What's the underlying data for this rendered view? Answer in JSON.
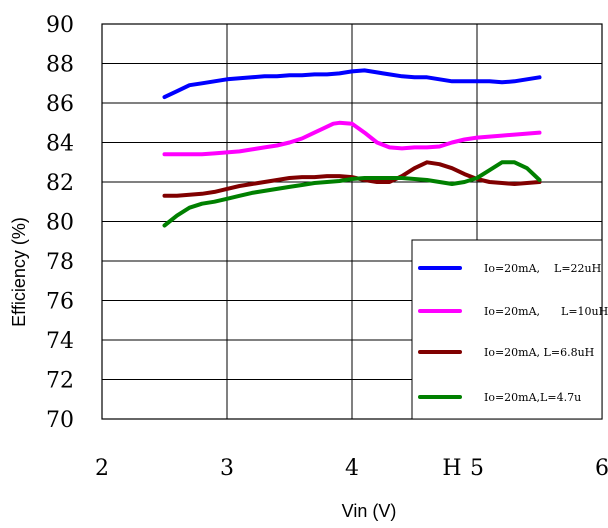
{
  "chart_data": {
    "type": "line",
    "title": "",
    "xlabel": "Vin (V)",
    "ylabel": "Efficiency (%)",
    "xlim": [
      2,
      6
    ],
    "ylim": [
      70,
      90
    ],
    "xticks": [
      "2",
      "3",
      "4",
      "5",
      "6"
    ],
    "yticks": [
      "70",
      "72",
      "74",
      "76",
      "78",
      "80",
      "82",
      "84",
      "86",
      "88",
      "90"
    ],
    "grid": "major gridlines on",
    "legend_position": "bottom-right",
    "stray_label": "H",
    "series": [
      {
        "name": "Io=20mA,    L=22uH",
        "color": "#0000ff",
        "x": [
          2.5,
          2.6,
          2.7,
          2.8,
          2.9,
          3.0,
          3.1,
          3.2,
          3.3,
          3.4,
          3.5,
          3.6,
          3.7,
          3.8,
          3.9,
          4.0,
          4.1,
          4.2,
          4.3,
          4.4,
          4.5,
          4.6,
          4.7,
          4.8,
          4.9,
          5.0,
          5.1,
          5.2,
          5.3,
          5.4,
          5.5
        ],
        "y": [
          86.3,
          86.6,
          86.9,
          87.0,
          87.1,
          87.2,
          87.25,
          87.3,
          87.35,
          87.35,
          87.4,
          87.4,
          87.45,
          87.45,
          87.5,
          87.6,
          87.65,
          87.55,
          87.45,
          87.35,
          87.3,
          87.3,
          87.2,
          87.1,
          87.1,
          87.1,
          87.1,
          87.05,
          87.1,
          87.2,
          87.3
        ]
      },
      {
        "name": "Io=20mA,      L=10uH",
        "color": "#ff00ff",
        "x": [
          2.5,
          2.6,
          2.7,
          2.8,
          2.9,
          3.0,
          3.1,
          3.2,
          3.3,
          3.4,
          3.5,
          3.6,
          3.7,
          3.8,
          3.85,
          3.9,
          4.0,
          4.1,
          4.2,
          4.3,
          4.4,
          4.5,
          4.6,
          4.7,
          4.8,
          4.9,
          5.0,
          5.1,
          5.2,
          5.3,
          5.4,
          5.5
        ],
        "y": [
          83.4,
          83.4,
          83.4,
          83.4,
          83.45,
          83.5,
          83.55,
          83.65,
          83.75,
          83.85,
          84.0,
          84.2,
          84.5,
          84.8,
          84.95,
          85.0,
          84.95,
          84.5,
          84.0,
          83.75,
          83.7,
          83.75,
          83.75,
          83.8,
          84.0,
          84.15,
          84.25,
          84.3,
          84.35,
          84.4,
          84.45,
          84.5
        ]
      },
      {
        "name": "Io=20mA, L=6.8uH",
        "color": "#800000",
        "x": [
          2.5,
          2.6,
          2.7,
          2.8,
          2.9,
          3.0,
          3.1,
          3.2,
          3.3,
          3.4,
          3.5,
          3.6,
          3.7,
          3.8,
          3.9,
          4.0,
          4.1,
          4.2,
          4.3,
          4.4,
          4.5,
          4.6,
          4.7,
          4.8,
          4.9,
          5.0,
          5.1,
          5.2,
          5.3,
          5.4,
          5.5
        ],
        "y": [
          81.3,
          81.3,
          81.35,
          81.4,
          81.5,
          81.65,
          81.8,
          81.9,
          82.0,
          82.1,
          82.2,
          82.25,
          82.25,
          82.3,
          82.3,
          82.25,
          82.1,
          82.0,
          82.0,
          82.3,
          82.7,
          83.0,
          82.9,
          82.7,
          82.4,
          82.15,
          82.0,
          81.95,
          81.9,
          81.95,
          82.0
        ]
      },
      {
        "name": "Io=20mA,L=4.7u",
        "color": "#008000",
        "x": [
          2.5,
          2.6,
          2.7,
          2.8,
          2.9,
          3.0,
          3.1,
          3.2,
          3.3,
          3.4,
          3.5,
          3.6,
          3.7,
          3.8,
          3.9,
          4.0,
          4.1,
          4.2,
          4.3,
          4.4,
          4.5,
          4.6,
          4.7,
          4.8,
          4.9,
          5.0,
          5.1,
          5.2,
          5.3,
          5.4,
          5.5
        ],
        "y": [
          79.8,
          80.3,
          80.7,
          80.9,
          81.0,
          81.15,
          81.3,
          81.45,
          81.55,
          81.65,
          81.75,
          81.85,
          81.95,
          82.0,
          82.05,
          82.15,
          82.2,
          82.2,
          82.2,
          82.2,
          82.15,
          82.1,
          82.0,
          81.9,
          82.0,
          82.2,
          82.6,
          83.0,
          83.0,
          82.7,
          82.1
        ]
      }
    ]
  }
}
